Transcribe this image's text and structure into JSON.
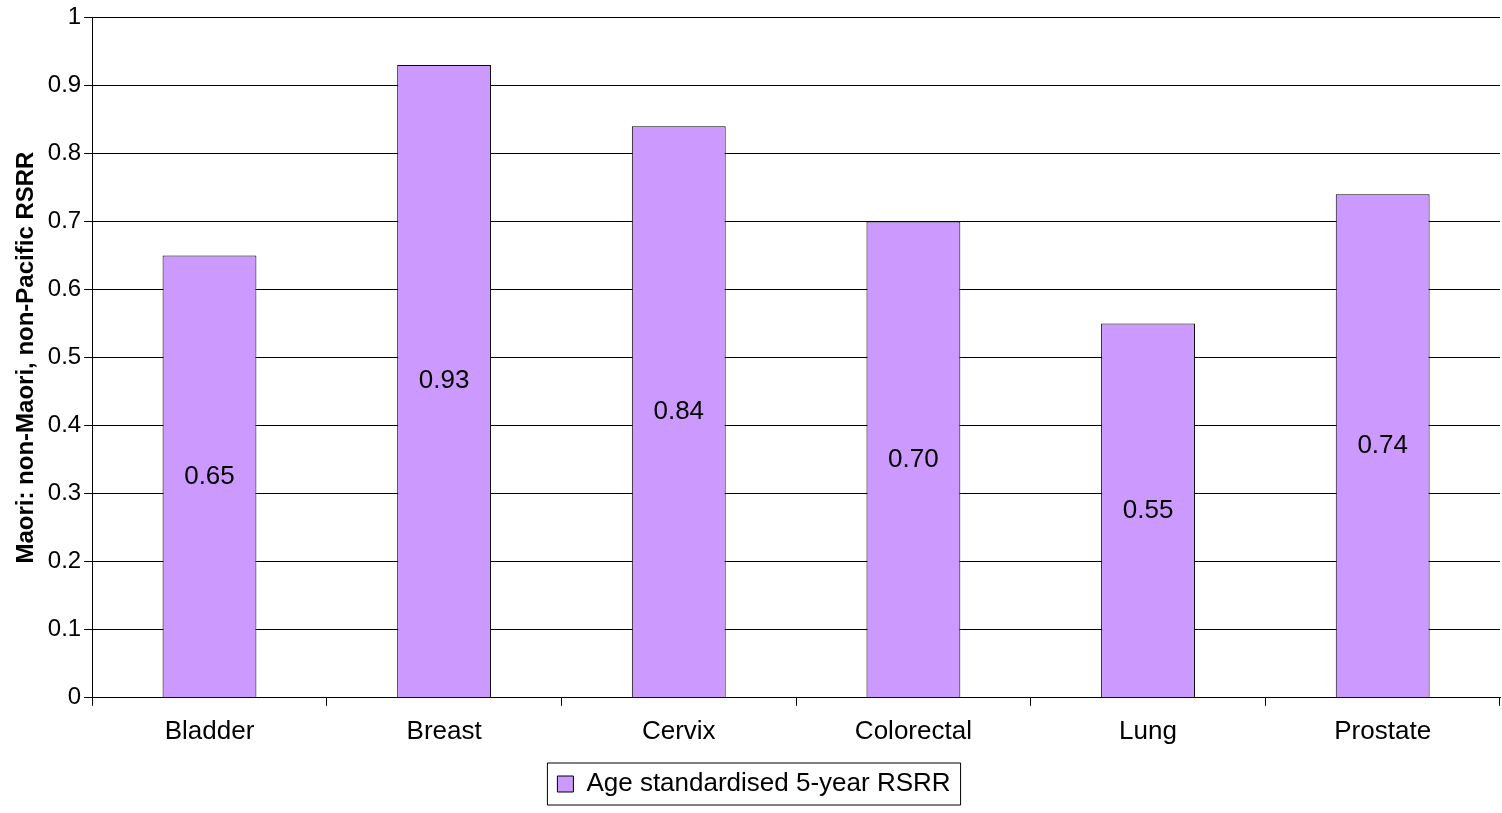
{
  "chart_data": {
    "type": "bar",
    "ylabel": "Maori: non-Maori, non-Pacific RSRR",
    "categories": [
      "Bladder",
      "Breast",
      "Cervix",
      "Colorectal",
      "Lung",
      "Prostate"
    ],
    "series": [
      {
        "name": "Age standardised 5-year RSRR",
        "color": "#cc99ff",
        "values": [
          0.65,
          0.93,
          0.84,
          0.7,
          0.55,
          0.74
        ],
        "value_labels": [
          "0.65",
          "0.93",
          "0.84",
          "0.70",
          "0.55",
          "0.74"
        ]
      }
    ],
    "ylim": [
      0,
      1
    ],
    "yticks": [
      0,
      0.1,
      0.2,
      0.3,
      0.4,
      0.5,
      0.6,
      0.7,
      0.8,
      0.9,
      1
    ],
    "grid": "y",
    "legend": "bottom"
  }
}
